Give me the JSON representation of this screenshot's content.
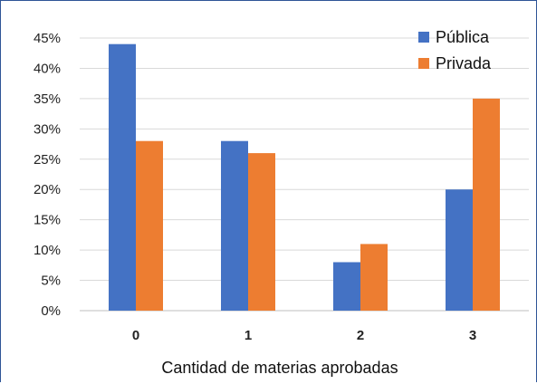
{
  "chart_data": {
    "type": "bar",
    "categories": [
      "0",
      "1",
      "2",
      "3"
    ],
    "series": [
      {
        "name": "Pública",
        "values": [
          44,
          28,
          8,
          20
        ],
        "color": "#4472c4"
      },
      {
        "name": "Privada",
        "values": [
          28,
          26,
          11,
          35
        ],
        "color": "#ed7d31"
      }
    ],
    "xlabel": "Cantidad de materias aprobadas",
    "ylabel": "",
    "ylim": [
      0,
      45
    ],
    "yticks": [
      "0%",
      "5%",
      "10%",
      "15%",
      "20%",
      "25%",
      "30%",
      "35%",
      "40%",
      "45%"
    ],
    "grid": true,
    "legend_position": "top-right"
  }
}
